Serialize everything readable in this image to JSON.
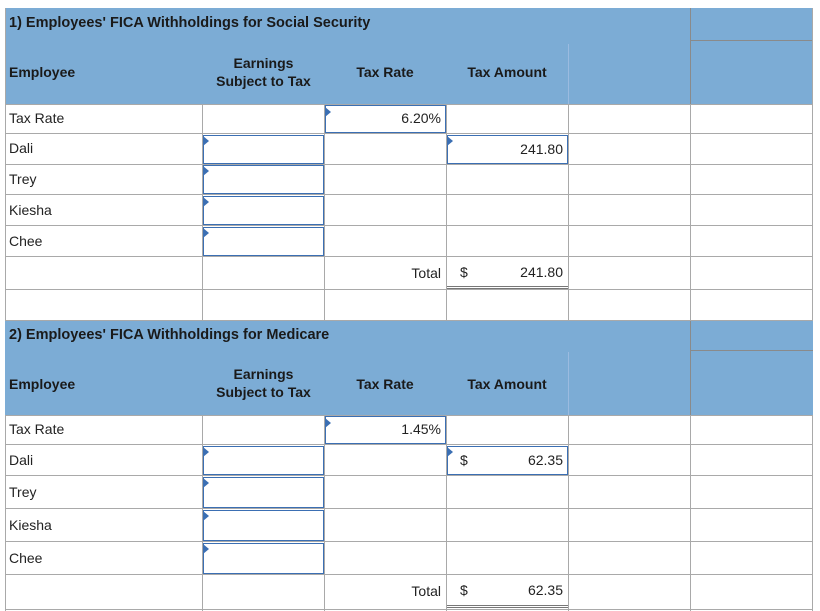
{
  "section1": {
    "title": "1) Employees' FICA Withholdings for Social Security",
    "headers": {
      "employee": "Employee",
      "earnings": "Earnings\nSubject to Tax",
      "rate": "Tax Rate",
      "amount": "Tax Amount"
    },
    "rows": [
      {
        "label": "Tax Rate",
        "earnings": "",
        "rate": "6.20%",
        "currency": "",
        "amount": ""
      },
      {
        "label": "Dali",
        "earnings": "",
        "rate": "",
        "currency": "",
        "amount": "241.80"
      },
      {
        "label": "Trey",
        "earnings": "",
        "rate": "",
        "currency": "",
        "amount": ""
      },
      {
        "label": "Kiesha",
        "earnings": "",
        "rate": "",
        "currency": "",
        "amount": ""
      },
      {
        "label": "Chee",
        "earnings": "",
        "rate": "",
        "currency": "",
        "amount": ""
      }
    ],
    "total": {
      "label": "Total",
      "currency": "$",
      "amount": "241.80"
    }
  },
  "section2": {
    "title": "2) Employees' FICA Withholdings for Medicare",
    "headers": {
      "employee": "Employee",
      "earnings": "Earnings\nSubject to Tax",
      "rate": "Tax Rate",
      "amount": "Tax Amount"
    },
    "rows": [
      {
        "label": "Tax Rate",
        "earnings": "",
        "rate": "1.45%",
        "currency": "",
        "amount": ""
      },
      {
        "label": "Dali",
        "earnings": "",
        "rate": "",
        "currency": "$",
        "amount": "62.35"
      },
      {
        "label": "Trey",
        "earnings": "",
        "rate": "",
        "currency": "",
        "amount": ""
      },
      {
        "label": "Kiesha",
        "earnings": "",
        "rate": "",
        "currency": "",
        "amount": ""
      },
      {
        "label": "Chee",
        "earnings": "",
        "rate": "",
        "currency": "",
        "amount": ""
      }
    ],
    "total": {
      "label": "Total",
      "currency": "$",
      "amount": "62.35"
    }
  }
}
